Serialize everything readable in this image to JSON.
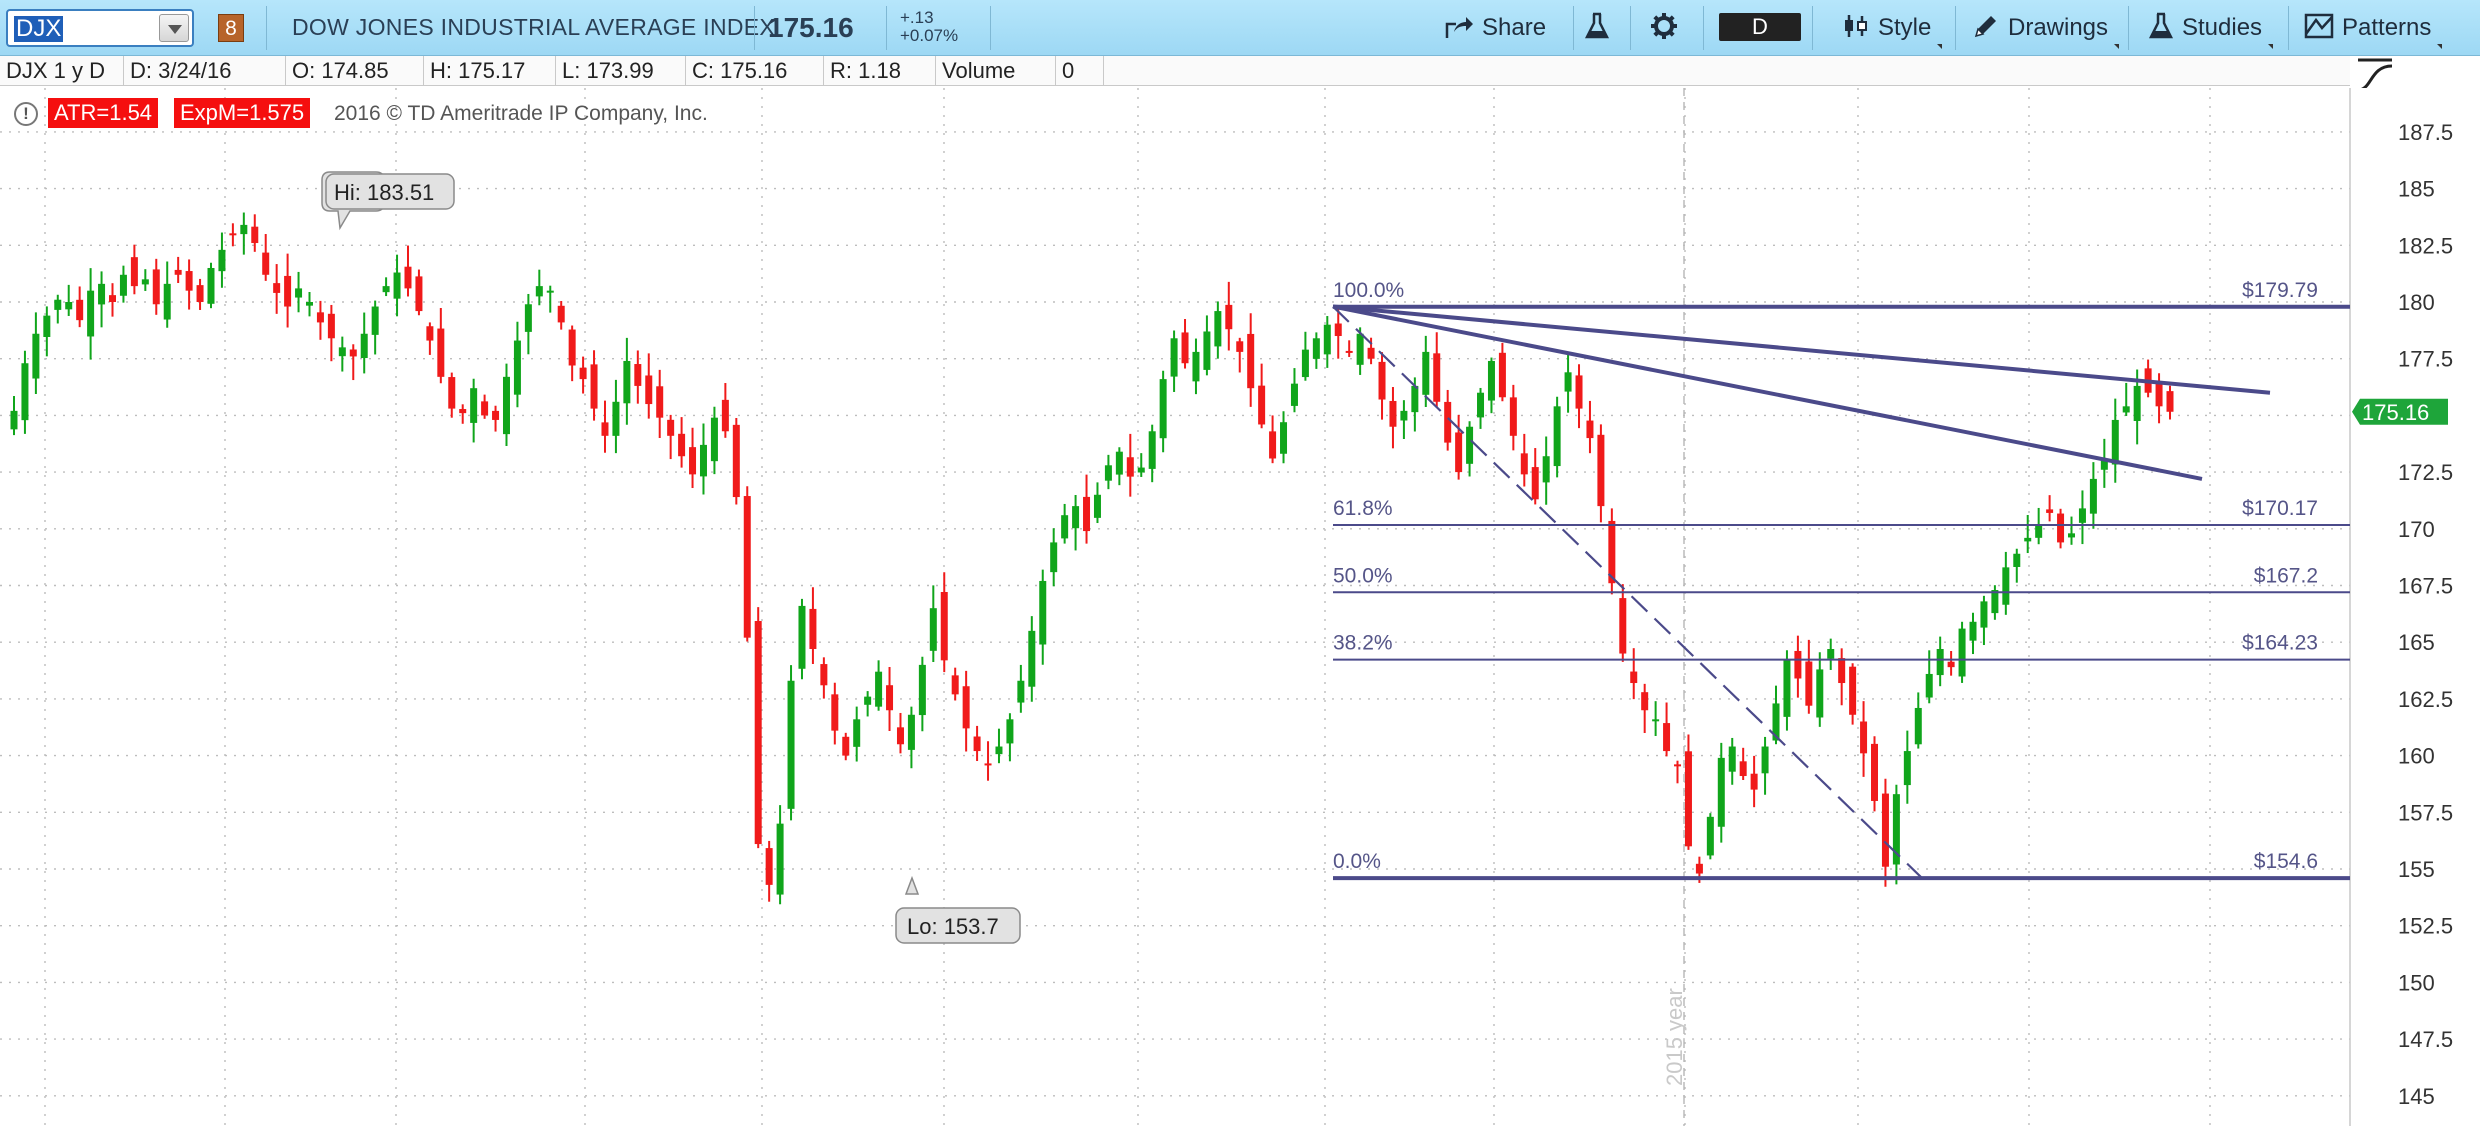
{
  "toolbar": {
    "symbol": "DJX",
    "link_number": "8",
    "company_name": "DOW JONES INDUSTRIAL AVERAGE INDEX",
    "last_price": "175.16",
    "net_change": "+.13",
    "pct_change": "+0.07%",
    "share_label": "Share",
    "flask_icon": "flask-icon",
    "gear_icon": "gear-icon",
    "period": "D",
    "style_label": "Style",
    "drawings_label": "Drawings",
    "studies_label": "Studies",
    "patterns_label": "Patterns"
  },
  "infobar": {
    "symbol_period": "DJX 1 y D",
    "date": "D:  3/24/16",
    "open": "O:  174.85",
    "high": "H:  175.17",
    "low": "L:  173.99",
    "close": "C:  175.16",
    "range": "R:  1.18",
    "volume_label": "Volume",
    "volume_value": "0"
  },
  "status": {
    "atr": "ATR=1.54",
    "expm": "ExpM=1.575",
    "copyright": "2016 © TD Ameritrade IP Company, Inc."
  },
  "colors": {
    "up_candle": "#10a51b",
    "down_candle": "#f01a1a",
    "fib_line": "#4b4a8a",
    "current_price_tag": "#1ea53a",
    "study_badge": "#f50f0f"
  },
  "chart_data": {
    "type": "candlestick",
    "title": "DOW JONES INDUSTRIAL AVERAGE INDEX",
    "period": "1 y D",
    "ylim": [
      144,
      189
    ],
    "y_ticks": [
      "187.5",
      "185",
      "182.5",
      "180",
      "177.5",
      "175",
      "172.5",
      "170",
      "167.5",
      "165",
      "162.5",
      "160",
      "157.5",
      "155",
      "152.5",
      "150",
      "147.5",
      "145"
    ],
    "x_divider_label": "2015 year",
    "high_callout": "Hi: 183.51",
    "low_callout": "Lo: 153.7",
    "current_price": "175.16",
    "grid": true,
    "closes_approx": [
      175.2,
      177.3,
      178.6,
      179.4,
      180.1,
      180.0,
      179.2,
      180.5,
      180.8,
      180.0,
      181.2,
      180.7,
      181.0,
      179.9,
      180.8,
      181.2,
      180.5,
      180.0,
      181.5,
      182.3,
      183.0,
      183.4,
      182.6,
      181.2,
      180.4,
      179.8,
      180.6,
      180.0,
      179.1,
      178.4,
      178.0,
      177.6,
      178.6,
      179.8,
      180.7,
      181.3,
      180.6,
      179.6,
      178.3,
      176.7,
      175.3,
      175.1,
      176.2,
      175.0,
      174.8,
      176.7,
      178.3,
      179.9,
      180.7,
      180.5,
      179.1,
      177.2,
      176.6,
      175.3,
      174.1,
      175.6,
      177.4,
      176.3,
      175.5,
      174.9,
      174.1,
      173.2,
      172.4,
      173.7,
      174.9,
      174.3,
      171.4,
      165.2,
      156.1,
      154.3,
      157.0,
      163.3,
      166.6,
      164.7,
      163.1,
      161.1,
      160.0,
      161.6,
      162.6,
      163.7,
      162.0,
      160.5,
      161.8,
      164.0,
      166.5,
      164.2,
      162.7,
      161.2,
      160.2,
      159.6,
      160.4,
      161.6,
      163.3,
      165.5,
      167.7,
      169.4,
      170.6,
      171.0,
      169.9,
      171.5,
      172.8,
      173.4,
      172.3,
      172.7,
      174.3,
      176.6,
      178.4,
      177.3,
      177.8,
      178.7,
      179.6,
      178.8,
      177.8,
      176.2,
      174.6,
      173.1,
      174.7,
      176.4,
      177.9,
      178.4,
      179.0,
      178.5,
      177.8,
      178.6,
      177.5,
      175.7,
      174.5,
      175.2,
      176.3,
      177.8,
      175.6,
      173.8,
      172.5,
      174.5,
      176.0,
      177.4,
      175.8,
      174.1,
      172.4,
      171.3,
      173.2,
      175.4,
      176.9,
      175.3,
      174.0,
      171.0,
      167.6,
      164.5,
      163.2,
      162.0,
      161.6,
      160.2,
      159.6,
      156.0,
      154.8,
      157.3,
      159.9,
      160.4,
      159.1,
      158.5,
      160.4,
      162.3,
      164.2,
      163.4,
      162.2,
      163.8,
      164.7,
      163.2,
      161.8,
      160.1,
      158.0,
      155.1,
      158.3,
      160.2,
      162.1,
      163.6,
      164.7,
      163.9,
      165.6,
      165.9,
      166.8,
      167.3,
      168.3,
      168.9,
      169.6,
      170.2,
      170.7,
      169.4,
      169.8,
      170.9,
      172.2,
      173.0,
      174.8,
      175.4,
      176.3,
      176.0,
      175.4,
      175.16
    ],
    "fibonacci_retracement": [
      {
        "level": "100.0%",
        "price": "$179.79",
        "value": 179.79
      },
      {
        "level": "61.8%",
        "price": "$170.17",
        "value": 170.17
      },
      {
        "level": "50.0%",
        "price": "$167.2",
        "value": 167.2
      },
      {
        "level": "38.2%",
        "price": "$164.23",
        "value": 164.23
      },
      {
        "level": "0.0%",
        "price": "$154.6",
        "value": 154.6
      }
    ],
    "trend_lines": [
      {
        "from": [
          179.8,
          "start"
        ],
        "to": [
          176.0,
          "end"
        ]
      },
      {
        "from": [
          179.8,
          "start"
        ],
        "to": [
          172.2,
          "end"
        ]
      },
      {
        "from": [
          179.8,
          "start"
        ],
        "to": [
          154.6,
          "low"
        ],
        "style": "dashed"
      }
    ]
  }
}
